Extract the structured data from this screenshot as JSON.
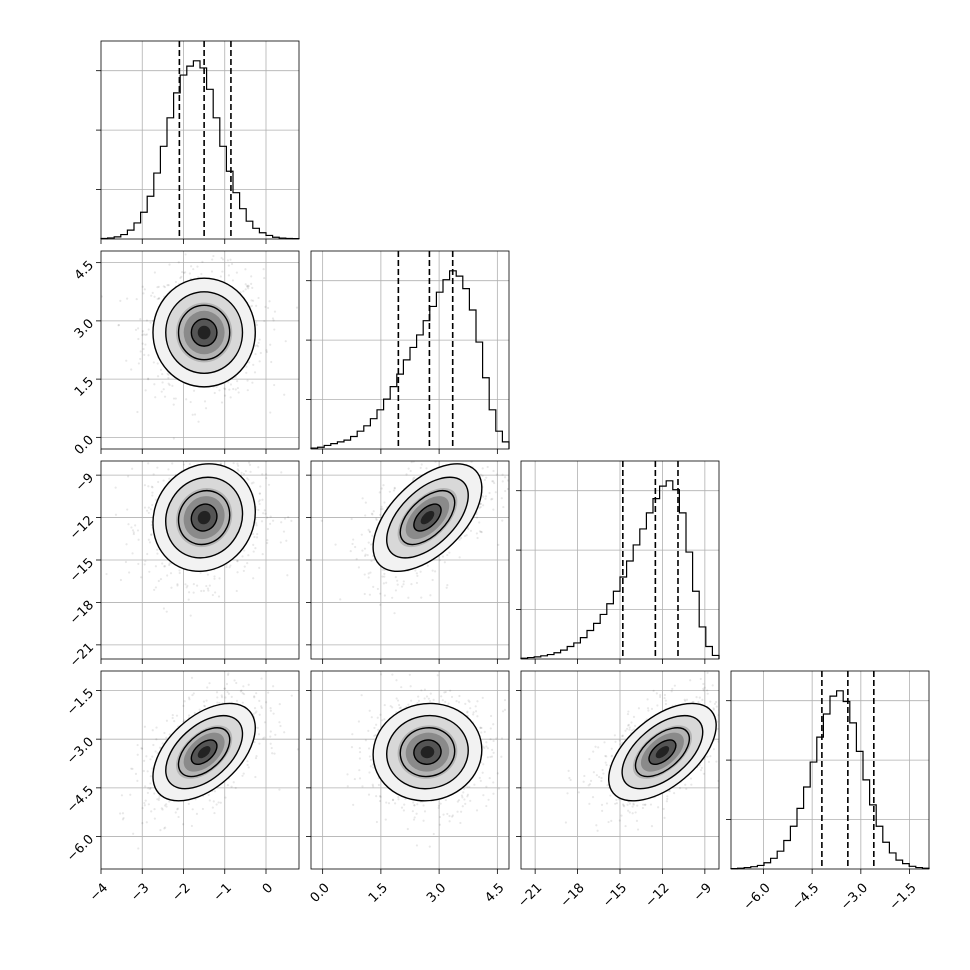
{
  "chart_data": {
    "type": "corner",
    "grid": true,
    "parameters": [
      {
        "range": [
          -4.0,
          0.8
        ],
        "ticks": [
          -4,
          -3,
          -2,
          -1,
          0
        ],
        "tick_labels": [
          "−4",
          "−3",
          "−2",
          "−1",
          "0"
        ],
        "quantiles": [
          -2.1,
          -1.5,
          -0.85
        ],
        "mean": -1.5,
        "sd": 0.62,
        "hist_bins": [
          0.003,
          0.006,
          0.012,
          0.025,
          0.05,
          0.09,
          0.15,
          0.24,
          0.37,
          0.52,
          0.68,
          0.82,
          0.92,
          0.97,
          1.0,
          0.96,
          0.84,
          0.68,
          0.52,
          0.38,
          0.26,
          0.17,
          0.1,
          0.06,
          0.035,
          0.02,
          0.01,
          0.005,
          0.003,
          0.002
        ]
      },
      {
        "range": [
          -0.3,
          4.8
        ],
        "ticks": [
          0.0,
          1.5,
          3.0,
          4.5
        ],
        "tick_labels": [
          "0.0",
          "1.5",
          "3.0",
          "4.5"
        ],
        "quantiles": [
          1.95,
          2.75,
          3.35
        ],
        "mean": 2.7,
        "sd": 0.7,
        "hist_bins": [
          0.005,
          0.01,
          0.02,
          0.03,
          0.04,
          0.05,
          0.07,
          0.1,
          0.13,
          0.17,
          0.22,
          0.28,
          0.35,
          0.42,
          0.5,
          0.57,
          0.64,
          0.72,
          0.8,
          0.88,
          0.95,
          1.0,
          0.97,
          0.9,
          0.78,
          0.6,
          0.4,
          0.22,
          0.1,
          0.04
        ]
      },
      {
        "range": [
          -22.0,
          -8.0
        ],
        "ticks": [
          -21,
          -18,
          -15,
          -12,
          -9
        ],
        "tick_labels": [
          "−21",
          "−18",
          "−15",
          "−12",
          "−9"
        ],
        "quantiles": [
          -14.8,
          -12.5,
          -10.9
        ],
        "mean": -12.0,
        "sd": 1.9,
        "hist_bins": [
          0.004,
          0.008,
          0.012,
          0.018,
          0.025,
          0.035,
          0.05,
          0.07,
          0.09,
          0.12,
          0.16,
          0.2,
          0.25,
          0.31,
          0.38,
          0.46,
          0.55,
          0.64,
          0.73,
          0.82,
          0.9,
          0.97,
          1.0,
          0.95,
          0.82,
          0.6,
          0.38,
          0.18,
          0.07,
          0.02
        ]
      },
      {
        "range": [
          -7.0,
          -0.9
        ],
        "ticks": [
          -6.0,
          -4.5,
          -3.0,
          -1.5
        ],
        "tick_labels": [
          "−6.0",
          "−4.5",
          "−3.0",
          "−1.5"
        ],
        "quantiles": [
          -4.2,
          -3.4,
          -2.6
        ],
        "mean": -3.4,
        "sd": 0.75,
        "hist_bins": [
          0.002,
          0.004,
          0.008,
          0.013,
          0.02,
          0.035,
          0.06,
          0.1,
          0.16,
          0.24,
          0.34,
          0.46,
          0.6,
          0.74,
          0.87,
          0.97,
          1.0,
          0.94,
          0.82,
          0.66,
          0.5,
          0.36,
          0.24,
          0.15,
          0.09,
          0.05,
          0.03,
          0.015,
          0.008,
          0.004
        ]
      }
    ],
    "pairs": [
      {
        "row": 1,
        "col": 0,
        "rho": 0.0
      },
      {
        "row": 2,
        "col": 0,
        "rho": 0.1
      },
      {
        "row": 2,
        "col": 1,
        "rho": 0.55
      },
      {
        "row": 3,
        "col": 0,
        "rho": 0.5
      },
      {
        "row": 3,
        "col": 1,
        "rho": 0.05
      },
      {
        "row": 3,
        "col": 2,
        "rho": 0.55
      }
    ],
    "contour_levels_sigma": [
      0.5,
      1.0,
      1.5,
      2.0
    ]
  }
}
